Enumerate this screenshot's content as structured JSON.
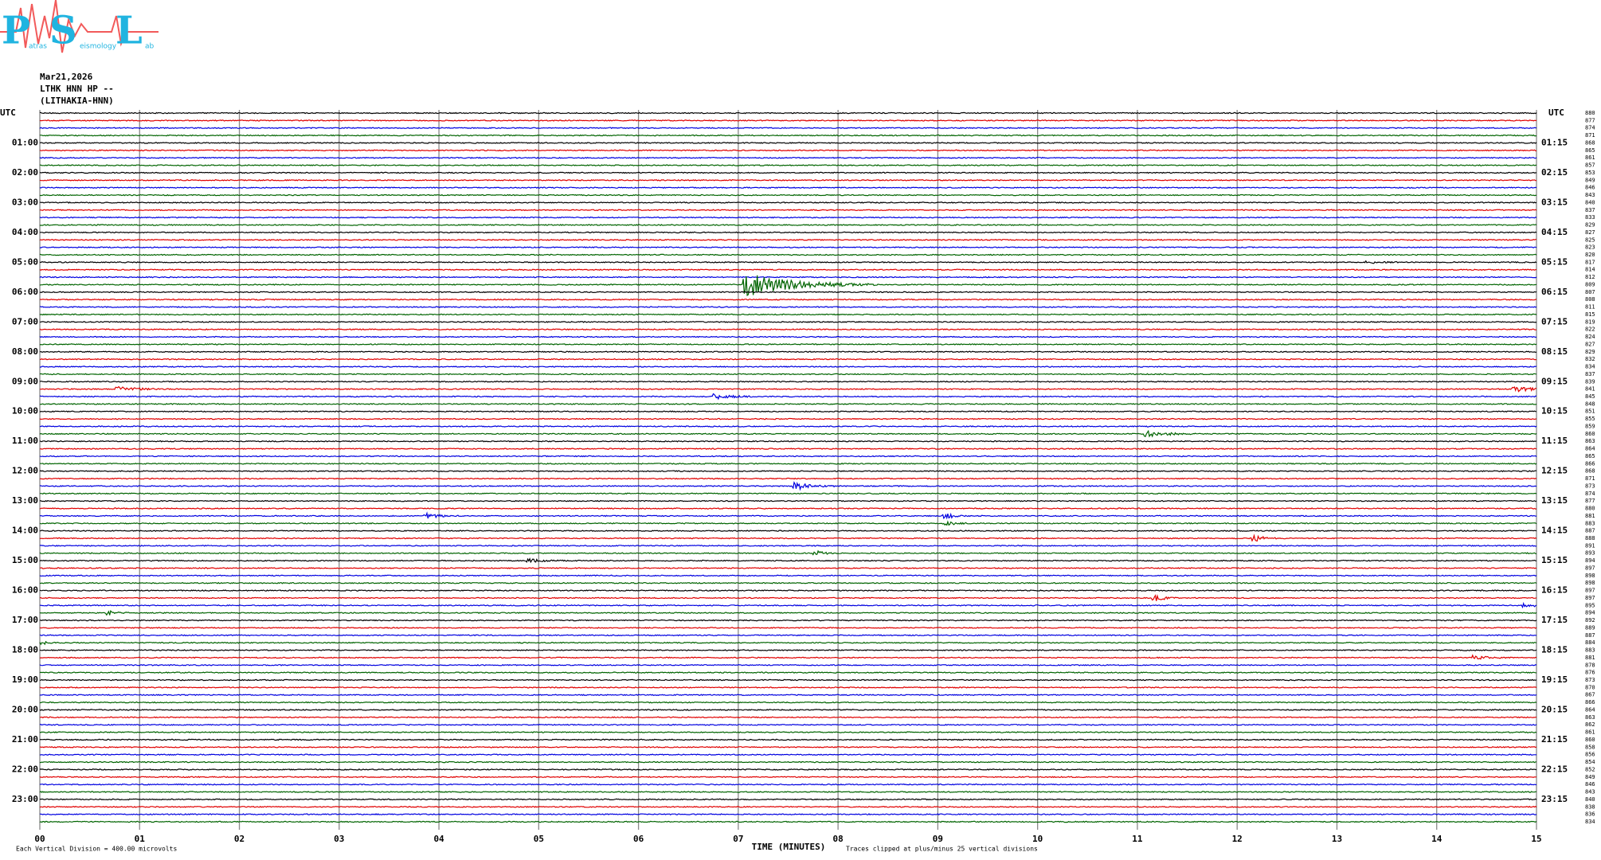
{
  "logo": {
    "letters": [
      "P",
      "S",
      "L"
    ],
    "small": [
      "atras",
      "eismology",
      "ab"
    ]
  },
  "header": {
    "date": "Mar21,2026",
    "station": "LTHK HNN HP --",
    "site": "(LITHAKIA-HNN)"
  },
  "left_axis": {
    "title": "UTC",
    "labels": [
      "01:00",
      "02:00",
      "03:00",
      "04:00",
      "05:00",
      "06:00",
      "07:00",
      "08:00",
      "09:00",
      "10:00",
      "11:00",
      "12:00",
      "13:00",
      "14:00",
      "15:00",
      "16:00",
      "17:00",
      "18:00",
      "19:00",
      "20:00",
      "21:00",
      "22:00",
      "23:00"
    ]
  },
  "right_axis": {
    "title": "UTC",
    "labels": [
      "01:15",
      "02:15",
      "03:15",
      "04:15",
      "05:15",
      "06:15",
      "07:15",
      "08:15",
      "09:15",
      "10:15",
      "11:15",
      "12:15",
      "13:15",
      "14:15",
      "15:15",
      "16:15",
      "17:15",
      "18:15",
      "19:15",
      "20:15",
      "21:15",
      "22:15",
      "23:15"
    ]
  },
  "trace_numbers": [
    "880",
    "877",
    "874",
    "871",
    "868",
    "865",
    "861",
    "857",
    "853",
    "849",
    "846",
    "843",
    "840",
    "837",
    "833",
    "829",
    "827",
    "825",
    "823",
    "820",
    "817",
    "814",
    "812",
    "809",
    "807",
    "808",
    "811",
    "815",
    "819",
    "822",
    "824",
    "827",
    "829",
    "832",
    "834",
    "837",
    "839",
    "841",
    "845",
    "848",
    "851",
    "855",
    "859",
    "860",
    "863",
    "864",
    "865",
    "866",
    "868",
    "871",
    "873",
    "874",
    "877",
    "880",
    "881",
    "883",
    "887",
    "888",
    "891",
    "893",
    "894",
    "897",
    "898",
    "898",
    "897",
    "897",
    "895",
    "894",
    "892",
    "889",
    "887",
    "884",
    "883",
    "881",
    "878",
    "876",
    "873",
    "870",
    "867",
    "866",
    "864",
    "863",
    "862",
    "861",
    "860",
    "858",
    "856",
    "854",
    "852",
    "849",
    "846",
    "843",
    "840",
    "838",
    "836",
    "834"
  ],
  "time_axis": {
    "title": "TIME (MINUTES)",
    "labels": [
      "00",
      "01",
      "02",
      "03",
      "04",
      "05",
      "06",
      "07",
      "08",
      "09",
      "10",
      "11",
      "12",
      "13",
      "14",
      "15"
    ]
  },
  "footer": {
    "scale": "Each Vertical Division =  400.00 microvolts",
    "clip": "Traces clipped at plus/minus 25 vertical divisions"
  }
}
